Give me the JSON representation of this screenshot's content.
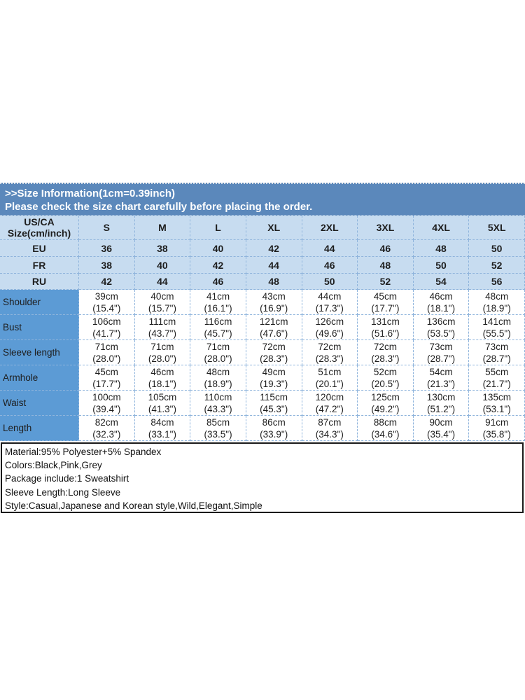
{
  "banner": {
    "title": ">>Size Information(1cm=0.39inch)",
    "subtitle": "Please check the size chart carefully before placing the order."
  },
  "size_chart": {
    "corner_header": [
      "US/CA",
      "Size(cm/inch)"
    ],
    "sizes": [
      "S",
      "M",
      "L",
      "XL",
      "2XL",
      "3XL",
      "4XL",
      "5XL"
    ],
    "region_rows": [
      {
        "label": "EU",
        "values": [
          "36",
          "38",
          "40",
          "42",
          "44",
          "46",
          "48",
          "50"
        ]
      },
      {
        "label": "FR",
        "values": [
          "38",
          "40",
          "42",
          "44",
          "46",
          "48",
          "50",
          "52"
        ]
      },
      {
        "label": "RU",
        "values": [
          "42",
          "44",
          "46",
          "48",
          "50",
          "52",
          "54",
          "56"
        ]
      }
    ],
    "measurement_rows": [
      {
        "label": "Shoulder",
        "cm": [
          "39cm",
          "40cm",
          "41cm",
          "43cm",
          "44cm",
          "45cm",
          "46cm",
          "48cm"
        ],
        "inch": [
          "(15.4\")",
          "(15.7\")",
          "(16.1\")",
          "(16.9\")",
          "(17.3\")",
          "(17.7\")",
          "(18.1\")",
          "(18.9\")"
        ]
      },
      {
        "label": "Bust",
        "cm": [
          "106cm",
          "111cm",
          "116cm",
          "121cm",
          "126cm",
          "131cm",
          "136cm",
          "141cm"
        ],
        "inch": [
          "(41.7\")",
          "(43.7\")",
          "(45.7\")",
          "(47.6\")",
          "(49.6\")",
          "(51.6\")",
          "(53.5\")",
          "(55.5\")"
        ]
      },
      {
        "label": "Sleeve length",
        "cm": [
          "71cm",
          "71cm",
          "71cm",
          "72cm",
          "72cm",
          "72cm",
          "73cm",
          "73cm"
        ],
        "inch": [
          "(28.0\")",
          "(28.0\")",
          "(28.0\")",
          "(28.3\")",
          "(28.3\")",
          "(28.3\")",
          "(28.7\")",
          "(28.7\")"
        ]
      },
      {
        "label": "Armhole",
        "cm": [
          "45cm",
          "46cm",
          "48cm",
          "49cm",
          "51cm",
          "52cm",
          "54cm",
          "55cm"
        ],
        "inch": [
          "(17.7\")",
          "(18.1\")",
          "(18.9\")",
          "(19.3\")",
          "(20.1\")",
          "(20.5\")",
          "(21.3\")",
          "(21.7\")"
        ]
      },
      {
        "label": "Waist",
        "cm": [
          "100cm",
          "105cm",
          "110cm",
          "115cm",
          "120cm",
          "125cm",
          "130cm",
          "135cm"
        ],
        "inch": [
          "(39.4\")",
          "(41.3\")",
          "(43.3\")",
          "(45.3\")",
          "(47.2\")",
          "(49.2\")",
          "(51.2\")",
          "(53.1\")"
        ]
      },
      {
        "label": "Length",
        "cm": [
          "82cm",
          "84cm",
          "85cm",
          "86cm",
          "87cm",
          "88cm",
          "90cm",
          "91cm"
        ],
        "inch": [
          "(32.3\")",
          "(33.1\")",
          "(33.5\")",
          "(33.9\")",
          "(34.3\")",
          "(34.6\")",
          "(35.4\")",
          "(35.8\")"
        ]
      }
    ]
  },
  "product_info": {
    "lines": [
      "Material:95% Polyester+5% Spandex",
      "Colors:Black,Pink,Grey",
      "Package include:1 Sweatshirt",
      "Sleeve Length:Long Sleeve",
      "Style:Casual,Japanese and Korean style,Wild,Elegant,Simple"
    ]
  },
  "colors": {
    "banner_bg": "#5b88bb",
    "banner_text": "#ffffff",
    "header_row_bg": "#c7dcf0",
    "label_column_bg": "#5c9bd5",
    "cell_border": "#8fb4dc",
    "body_text": "#1e1e1e",
    "info_box_border": "#1a1a1a"
  }
}
